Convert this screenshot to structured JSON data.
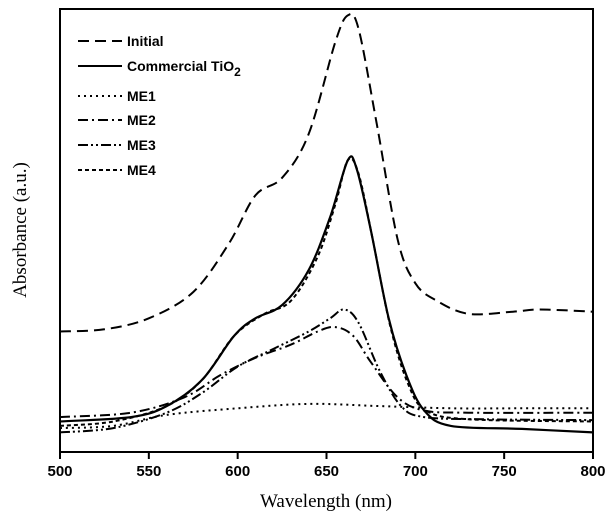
{
  "chart_data": {
    "type": "line",
    "title": "",
    "xlabel": "Wavelength (nm)",
    "ylabel": "Absorbance (a.u.)",
    "xlim": [
      500,
      800
    ],
    "ylim": [
      0,
      1
    ],
    "xticks": [
      500,
      550,
      600,
      650,
      700,
      750,
      800
    ],
    "yticks_shown": false,
    "grid": false,
    "legend_position": "top-left",
    "series": [
      {
        "name": "Initial",
        "dash": "dashed",
        "points": [
          [
            500,
            0.27
          ],
          [
            525,
            0.275
          ],
          [
            550,
            0.3
          ],
          [
            575,
            0.36
          ],
          [
            595,
            0.47
          ],
          [
            610,
            0.58
          ],
          [
            625,
            0.62
          ],
          [
            640,
            0.72
          ],
          [
            655,
            0.93
          ],
          [
            662,
            0.99
          ],
          [
            668,
            0.96
          ],
          [
            678,
            0.75
          ],
          [
            690,
            0.48
          ],
          [
            700,
            0.38
          ],
          [
            712,
            0.34
          ],
          [
            730,
            0.31
          ],
          [
            755,
            0.315
          ],
          [
            770,
            0.32
          ],
          [
            800,
            0.315
          ]
        ]
      },
      {
        "name": "Commercial TiO",
        "name_subscript": "2",
        "dash": "solid",
        "points": [
          [
            500,
            0.065
          ],
          [
            540,
            0.075
          ],
          [
            560,
            0.1
          ],
          [
            580,
            0.16
          ],
          [
            598,
            0.26
          ],
          [
            610,
            0.3
          ],
          [
            625,
            0.33
          ],
          [
            640,
            0.41
          ],
          [
            652,
            0.53
          ],
          [
            662,
            0.66
          ],
          [
            667,
            0.64
          ],
          [
            675,
            0.5
          ],
          [
            685,
            0.3
          ],
          [
            695,
            0.17
          ],
          [
            705,
            0.09
          ],
          [
            720,
            0.055
          ],
          [
            760,
            0.048
          ],
          [
            800,
            0.04
          ]
        ]
      },
      {
        "name": "ME1",
        "dash": "dotted",
        "points": [
          [
            500,
            0.05
          ],
          [
            530,
            0.055
          ],
          [
            560,
            0.08
          ],
          [
            600,
            0.095
          ],
          [
            640,
            0.105
          ],
          [
            680,
            0.1
          ],
          [
            720,
            0.095
          ],
          [
            760,
            0.095
          ],
          [
            800,
            0.095
          ]
        ]
      },
      {
        "name": "ME2",
        "dash": "dash-dot",
        "points": [
          [
            500,
            0.075
          ],
          [
            540,
            0.085
          ],
          [
            570,
            0.12
          ],
          [
            590,
            0.17
          ],
          [
            610,
            0.21
          ],
          [
            630,
            0.24
          ],
          [
            645,
            0.27
          ],
          [
            655,
            0.28
          ],
          [
            665,
            0.26
          ],
          [
            675,
            0.2
          ],
          [
            690,
            0.12
          ],
          [
            705,
            0.09
          ],
          [
            730,
            0.085
          ],
          [
            800,
            0.085
          ]
        ]
      },
      {
        "name": "ME3",
        "dash": "dash-dot-dot",
        "points": [
          [
            500,
            0.04
          ],
          [
            530,
            0.05
          ],
          [
            560,
            0.085
          ],
          [
            580,
            0.13
          ],
          [
            600,
            0.19
          ],
          [
            620,
            0.23
          ],
          [
            640,
            0.27
          ],
          [
            652,
            0.3
          ],
          [
            660,
            0.32
          ],
          [
            668,
            0.29
          ],
          [
            680,
            0.18
          ],
          [
            692,
            0.1
          ],
          [
            705,
            0.075
          ],
          [
            740,
            0.07
          ],
          [
            800,
            0.068
          ]
        ]
      },
      {
        "name": "ME4",
        "dash": "short-dash",
        "points": [
          [
            500,
            0.055
          ],
          [
            530,
            0.065
          ],
          [
            560,
            0.1
          ],
          [
            580,
            0.16
          ],
          [
            598,
            0.26
          ],
          [
            615,
            0.31
          ],
          [
            630,
            0.34
          ],
          [
            645,
            0.44
          ],
          [
            655,
            0.56
          ],
          [
            662,
            0.66
          ],
          [
            668,
            0.63
          ],
          [
            676,
            0.48
          ],
          [
            686,
            0.28
          ],
          [
            696,
            0.15
          ],
          [
            706,
            0.09
          ],
          [
            730,
            0.07
          ],
          [
            800,
            0.065
          ]
        ]
      }
    ]
  }
}
